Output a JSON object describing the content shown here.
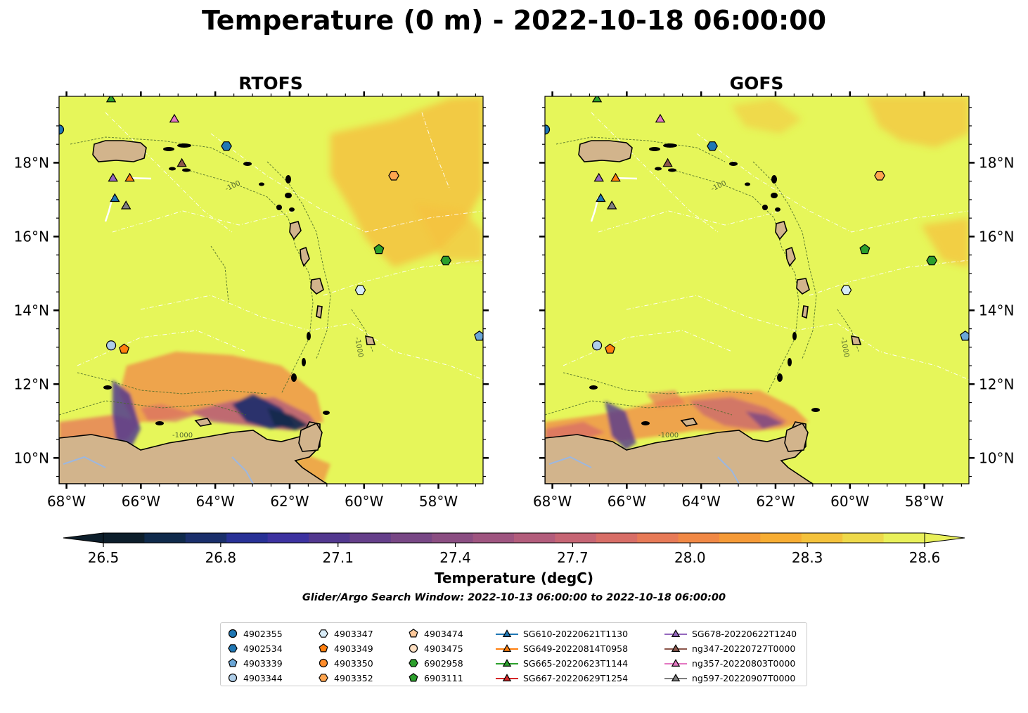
{
  "title": "Temperature (0 m) - 2022-10-18 06:00:00",
  "subtitle": "Glider/Argo Search Window: 2022-10-13 06:00:00 to 2022-10-18 06:00:00",
  "colorbar": {
    "label": "Temperature (degC)",
    "min": 26.5,
    "max": 28.6,
    "ticks": [
      "26.5",
      "26.8",
      "27.1",
      "27.4",
      "27.7",
      "28.0",
      "28.3",
      "28.6"
    ],
    "cmap": [
      "#0d1e2b",
      "#0f2a4b",
      "#1a2f6b",
      "#283196",
      "#3d32a0",
      "#52388f",
      "#653f8a",
      "#784785",
      "#8b4e82",
      "#9f5580",
      "#b35d7c",
      "#c66574",
      "#d86e67",
      "#e77a57",
      "#f08845",
      "#f59a37",
      "#f7ad33",
      "#f4c23c",
      "#eed94a",
      "#e9f05a"
    ],
    "extend": "both"
  },
  "contour_labels": [
    "-100",
    "-1000"
  ],
  "chart_data": [
    {
      "type": "heatmap",
      "title": "RTOFS",
      "x_ticks": [
        "68°W",
        "66°W",
        "64°W",
        "62°W",
        "60°W",
        "58°W"
      ],
      "y_ticks": [
        "18°N",
        "16°N",
        "14°N",
        "12°N",
        "10°N"
      ],
      "xlim": [
        -68.2,
        -56.8
      ],
      "ylim": [
        9.3,
        19.8
      ],
      "field_summary": "mostly >=28.6 degC; cooler water (26.5-28.3) along the northern coast of South America near 63-61°W",
      "markers": [
        {
          "id": "4902355",
          "lon": -68.2,
          "lat": 18.9
        },
        {
          "id": "4902534",
          "lon": -63.7,
          "lat": 18.45
        },
        {
          "id": "4903339",
          "lon": -56.9,
          "lat": 13.3
        },
        {
          "id": "4903344",
          "lon": -66.8,
          "lat": 13.05
        },
        {
          "id": "4903347",
          "lon": -60.1,
          "lat": 14.55
        },
        {
          "id": "4903349",
          "lon": -66.45,
          "lat": 12.95
        },
        {
          "id": "4903352",
          "lon": -59.2,
          "lat": 17.65
        },
        {
          "id": "6902958",
          "lon": -57.8,
          "lat": 15.35
        },
        {
          "id": "6903111",
          "lon": -59.6,
          "lat": 15.65
        },
        {
          "id": "SG610-20220621T1130",
          "lon": -66.7,
          "lat": 17.05
        },
        {
          "id": "SG649-20220814T0958",
          "lon": -66.3,
          "lat": 17.6
        },
        {
          "id": "SG665-20220623T1144",
          "lon": -66.8,
          "lat": 19.75
        },
        {
          "id": "SG678-20220622T1240",
          "lon": -66.75,
          "lat": 17.6
        },
        {
          "id": "ng347-20220727T0000",
          "lon": -64.9,
          "lat": 18.0
        },
        {
          "id": "ng357-20220803T0000",
          "lon": -65.1,
          "lat": 19.2
        },
        {
          "id": "ng597-20220907T0000",
          "lon": -66.4,
          "lat": 16.85
        }
      ]
    },
    {
      "type": "heatmap",
      "title": "GOFS",
      "x_ticks": [
        "68°W",
        "66°W",
        "64°W",
        "62°W",
        "60°W",
        "58°W"
      ],
      "y_ticks": [
        "18°N",
        "16°N",
        "14°N",
        "12°N",
        "10°N"
      ],
      "xlim": [
        -68.2,
        -56.8
      ],
      "ylim": [
        9.3,
        19.8
      ],
      "field_summary": "mostly >=28.6 degC; moderately cooler water (26.8-28.3) along the South American coast",
      "markers": [
        {
          "id": "4902355",
          "lon": -68.2,
          "lat": 18.9
        },
        {
          "id": "4902534",
          "lon": -63.7,
          "lat": 18.45
        },
        {
          "id": "4903339",
          "lon": -56.9,
          "lat": 13.3
        },
        {
          "id": "4903344",
          "lon": -66.8,
          "lat": 13.05
        },
        {
          "id": "4903347",
          "lon": -60.1,
          "lat": 14.55
        },
        {
          "id": "4903349",
          "lon": -66.45,
          "lat": 12.95
        },
        {
          "id": "4903352",
          "lon": -59.2,
          "lat": 17.65
        },
        {
          "id": "6902958",
          "lon": -57.8,
          "lat": 15.35
        },
        {
          "id": "6903111",
          "lon": -59.6,
          "lat": 15.65
        },
        {
          "id": "SG610-20220621T1130",
          "lon": -66.7,
          "lat": 17.05
        },
        {
          "id": "SG649-20220814T0958",
          "lon": -66.3,
          "lat": 17.6
        },
        {
          "id": "SG665-20220623T1144",
          "lon": -66.8,
          "lat": 19.75
        },
        {
          "id": "SG678-20220622T1240",
          "lon": -66.75,
          "lat": 17.6
        },
        {
          "id": "ng347-20220727T0000",
          "lon": -64.9,
          "lat": 18.0
        },
        {
          "id": "ng357-20220803T0000",
          "lon": -65.1,
          "lat": 19.2
        },
        {
          "id": "ng597-20220907T0000",
          "lon": -66.4,
          "lat": 16.85
        }
      ]
    }
  ],
  "legend": [
    {
      "label": "4902355",
      "shape": "circle",
      "color": "#1f77b4",
      "kind": "argo"
    },
    {
      "label": "4902534",
      "shape": "hexagon",
      "color": "#1f77b4",
      "kind": "argo"
    },
    {
      "label": "4903339",
      "shape": "pentagon",
      "color": "#6aa6d6",
      "kind": "argo"
    },
    {
      "label": "4903344",
      "shape": "circle",
      "color": "#aecde8",
      "kind": "argo"
    },
    {
      "label": "4903347",
      "shape": "hexagon",
      "color": "#d7ebf7",
      "kind": "argo"
    },
    {
      "label": "4903349",
      "shape": "pentagon",
      "color": "#ff7f0e",
      "kind": "argo"
    },
    {
      "label": "4903350",
      "shape": "circle",
      "color": "#ff8c2a",
      "kind": "argo"
    },
    {
      "label": "4903352",
      "shape": "hexagon",
      "color": "#ffa54f",
      "kind": "argo"
    },
    {
      "label": "4903474",
      "shape": "pentagon",
      "color": "#ffc99a",
      "kind": "argo"
    },
    {
      "label": "4903475",
      "shape": "circle",
      "color": "#ffe0c2",
      "kind": "argo"
    },
    {
      "label": "6902958",
      "shape": "hexagon",
      "color": "#2ca02c",
      "kind": "argo"
    },
    {
      "label": "6903111",
      "shape": "pentagon",
      "color": "#2ca02c",
      "kind": "argo"
    },
    {
      "label": "SG610-20220621T1130",
      "shape": "triangle",
      "color": "#1f77b4",
      "kind": "glider"
    },
    {
      "label": "SG649-20220814T0958",
      "shape": "triangle",
      "color": "#ff7f0e",
      "kind": "glider"
    },
    {
      "label": "SG665-20220623T1144",
      "shape": "triangle",
      "color": "#2ca02c",
      "kind": "glider"
    },
    {
      "label": "SG667-20220629T1254",
      "shape": "triangle",
      "color": "#d62728",
      "kind": "glider"
    },
    {
      "label": "SG678-20220622T1240",
      "shape": "triangle",
      "color": "#9467bd",
      "kind": "glider"
    },
    {
      "label": "ng347-20220727T0000",
      "shape": "triangle",
      "color": "#8c564b",
      "kind": "glider"
    },
    {
      "label": "ng357-20220803T0000",
      "shape": "triangle",
      "color": "#e377c2",
      "kind": "glider"
    },
    {
      "label": "ng597-20220907T0000",
      "shape": "triangle",
      "color": "#7f7f7f",
      "kind": "glider"
    }
  ],
  "colors": {
    "ocean": "#e6f65a",
    "land": "#d2b48c",
    "warm_patch": "#f5c23e",
    "river": "#9cb7e0"
  }
}
